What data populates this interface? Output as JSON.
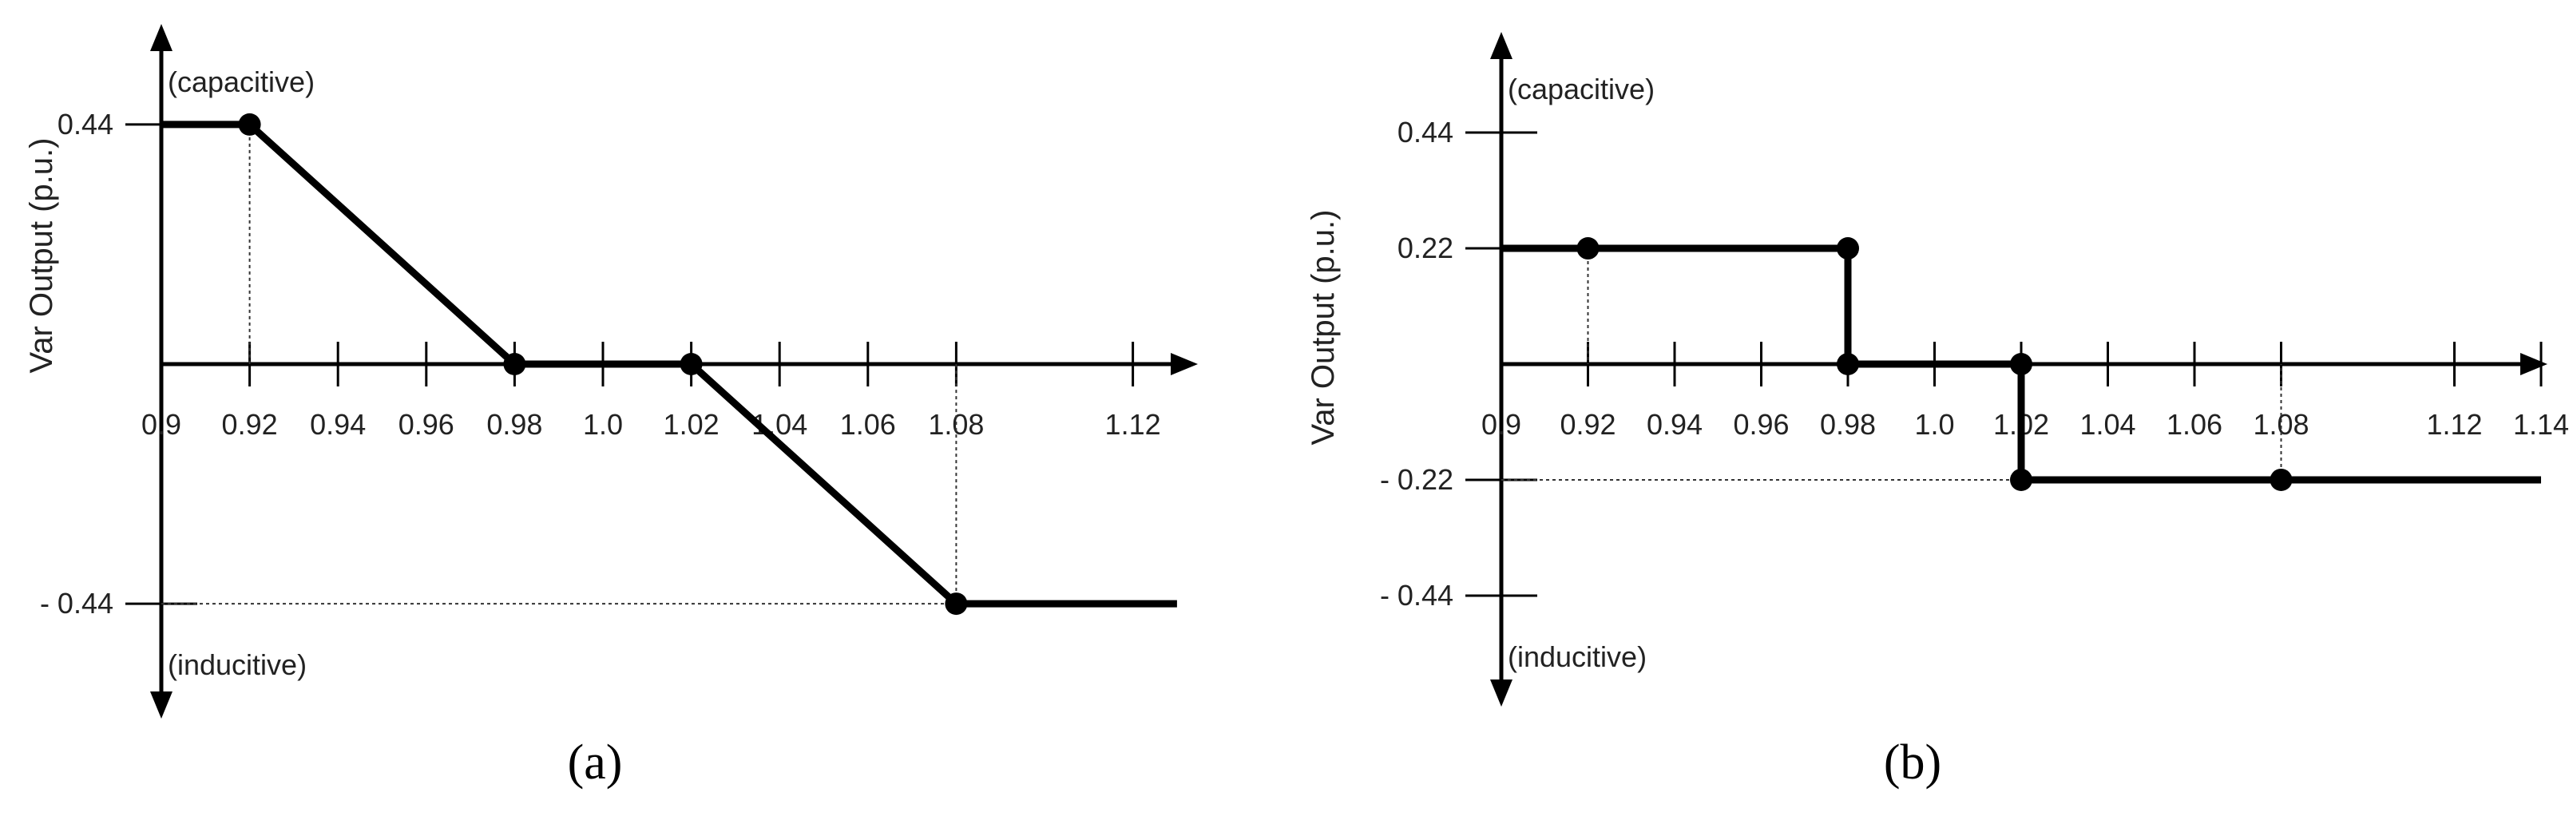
{
  "chart_data": [
    {
      "type": "line",
      "panel_label": "(a)",
      "ylabel": "Var Output (p.u.)",
      "y_top_annotation": "(capacitive)",
      "y_bottom_annotation": "(inducitive)",
      "x_ticks": [
        0.9,
        0.92,
        0.94,
        0.96,
        0.98,
        1.0,
        1.02,
        1.04,
        1.06,
        1.08,
        1.12
      ],
      "x_tick_labels": [
        "0.9",
        "0.92",
        "0.94",
        "0.96",
        "0.98",
        "1.0",
        "1.02",
        "1.04",
        "1.06",
        "1.08",
        "1.12"
      ],
      "y_ticks": [
        0.44,
        -0.44
      ],
      "y_tick_labels": [
        "0.44",
        "- 0.44"
      ],
      "series": [
        {
          "x": [
            0.9,
            0.92,
            0.98,
            1.02,
            1.08,
            1.13
          ],
          "y": [
            0.44,
            0.44,
            0.0,
            0.0,
            -0.44,
            -0.44
          ]
        }
      ],
      "markers": [
        [
          0.92,
          0.44
        ],
        [
          0.98,
          0.0
        ],
        [
          1.02,
          0.0
        ],
        [
          1.08,
          -0.44
        ]
      ]
    },
    {
      "type": "line",
      "panel_label": "(b)",
      "ylabel": "Var Output (p.u.)",
      "y_top_annotation": "(capacitive)",
      "y_bottom_annotation": "(inducitive)",
      "x_ticks": [
        0.9,
        0.92,
        0.94,
        0.96,
        0.98,
        1.0,
        1.02,
        1.04,
        1.06,
        1.08,
        1.12,
        1.14
      ],
      "x_tick_labels": [
        "0.9",
        "0.92",
        "0.94",
        "0.96",
        "0.98",
        "1.0",
        "1.02",
        "1.04",
        "1.06",
        "1.08",
        "1.12",
        "1.14"
      ],
      "y_ticks": [
        0.44,
        0.22,
        -0.22,
        -0.44
      ],
      "y_tick_labels": [
        "0.44",
        "0.22",
        "- 0.22",
        "- 0.44"
      ],
      "series": [
        {
          "x": [
            0.9,
            0.98,
            0.98,
            1.02,
            1.02,
            1.14
          ],
          "y": [
            0.22,
            0.22,
            0.0,
            0.0,
            -0.22,
            -0.22
          ]
        }
      ],
      "markers": [
        [
          0.92,
          0.22
        ],
        [
          0.98,
          0.22
        ],
        [
          0.98,
          0.0
        ],
        [
          1.02,
          0.0
        ],
        [
          1.02,
          -0.22
        ],
        [
          1.08,
          -0.22
        ]
      ]
    }
  ]
}
